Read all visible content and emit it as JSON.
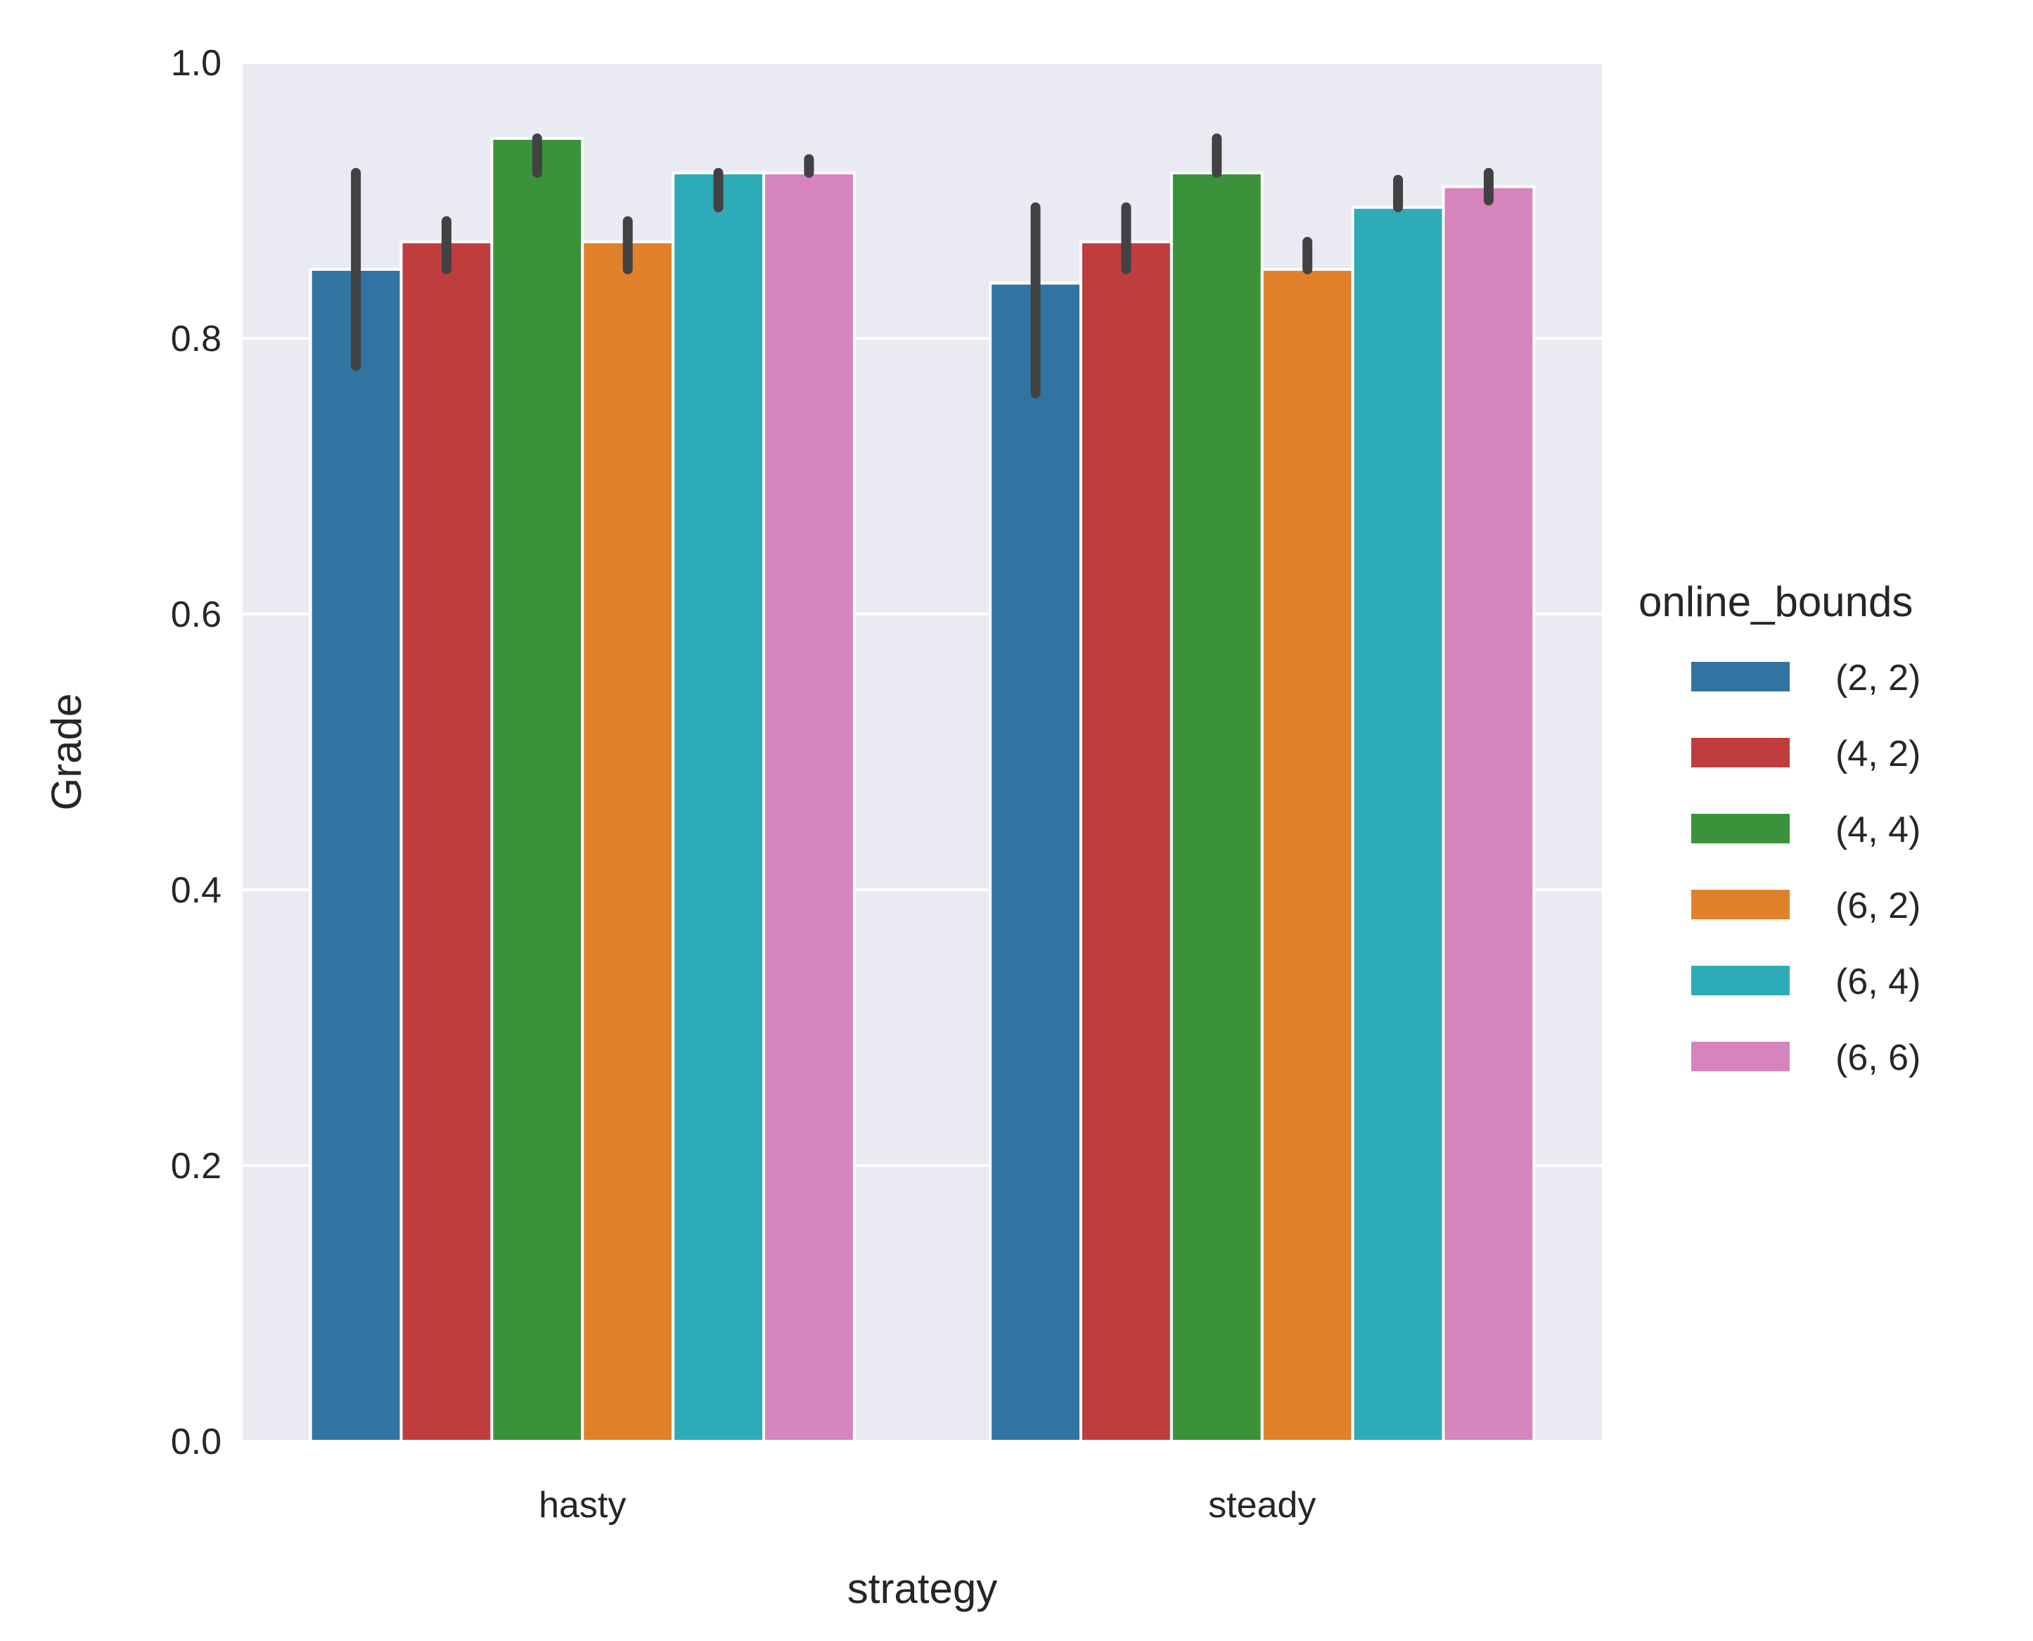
{
  "chart_data": {
    "type": "bar",
    "title": "",
    "xlabel": "strategy",
    "ylabel": "Grade",
    "ylim": [
      0,
      1.0
    ],
    "yticks": [
      "0.0",
      "0.2",
      "0.4",
      "0.6",
      "0.8",
      "1.0"
    ],
    "grid": true,
    "background": "#EAEAF2",
    "legend": {
      "title": "online_bounds",
      "placement": "right"
    },
    "categories": [
      "hasty",
      "steady"
    ],
    "series": [
      {
        "name": "(2, 2)",
        "color": "#3274A1",
        "values": [
          0.85,
          0.84
        ],
        "err_low": [
          0.78,
          0.76
        ],
        "err_high": [
          0.92,
          0.895
        ]
      },
      {
        "name": "(4, 2)",
        "color": "#C03D3E",
        "values": [
          0.87,
          0.87
        ],
        "err_low": [
          0.85,
          0.85
        ],
        "err_high": [
          0.885,
          0.895
        ]
      },
      {
        "name": "(4, 4)",
        "color": "#3A923A",
        "values": [
          0.945,
          0.92
        ],
        "err_low": [
          0.92,
          0.92
        ],
        "err_high": [
          0.945,
          0.945
        ]
      },
      {
        "name": "(6, 2)",
        "color": "#E1812C",
        "values": [
          0.87,
          0.85
        ],
        "err_low": [
          0.85,
          0.85
        ],
        "err_high": [
          0.885,
          0.87
        ]
      },
      {
        "name": "(6, 4)",
        "color": "#2DABB8",
        "values": [
          0.92,
          0.895
        ],
        "err_low": [
          0.895,
          0.895
        ],
        "err_high": [
          0.92,
          0.915
        ]
      },
      {
        "name": "(6, 6)",
        "color": "#D684BD",
        "values": [
          0.92,
          0.91
        ],
        "err_low": [
          0.92,
          0.9
        ],
        "err_high": [
          0.93,
          0.92
        ]
      }
    ]
  }
}
